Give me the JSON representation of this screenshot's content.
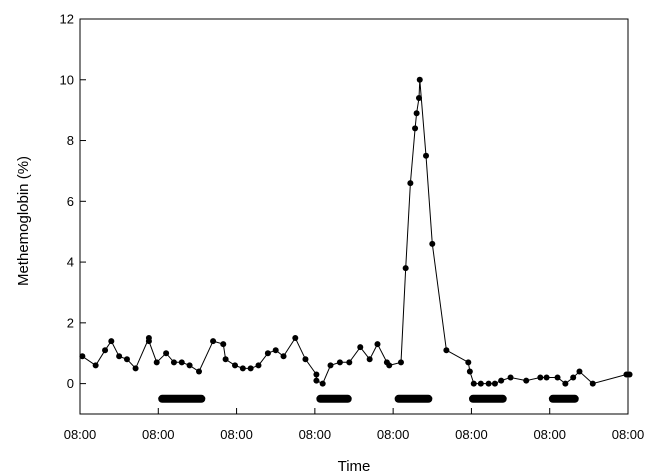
{
  "chart_data": {
    "type": "line",
    "title": "",
    "xlabel": "Time",
    "ylabel": "Methemoglobin (%)",
    "ylim": [
      -1,
      12
    ],
    "yticks": [
      0,
      2,
      4,
      6,
      8,
      10,
      12
    ],
    "xlim": [
      0,
      7
    ],
    "xticks": [
      0,
      1,
      2,
      3,
      4,
      5,
      6,
      7
    ],
    "xtick_labels": [
      "08:00",
      "08:00",
      "08:00",
      "08:00",
      "08:00",
      "08:00",
      "08:00",
      "08:00"
    ],
    "x_unit": "days",
    "grid": false,
    "series": [
      {
        "values": [
          [
            0.03,
            0.9
          ],
          [
            0.2,
            0.6
          ],
          [
            0.32,
            1.1
          ],
          [
            0.4,
            1.4
          ],
          [
            0.5,
            0.9
          ],
          [
            0.6,
            0.8
          ],
          [
            0.71,
            0.5
          ],
          [
            0.88,
            1.5
          ],
          [
            0.88,
            1.4
          ],
          [
            0.98,
            0.7
          ],
          [
            1.1,
            1.0
          ],
          [
            1.2,
            0.7
          ],
          [
            1.3,
            0.7
          ],
          [
            1.4,
            0.6
          ],
          [
            1.52,
            0.4
          ],
          [
            1.7,
            1.4
          ],
          [
            1.83,
            1.3
          ],
          [
            1.86,
            0.8
          ],
          [
            1.98,
            0.6
          ],
          [
            2.08,
            0.5
          ],
          [
            2.18,
            0.5
          ],
          [
            2.28,
            0.6
          ],
          [
            2.4,
            1.0
          ],
          [
            2.5,
            1.1
          ],
          [
            2.6,
            0.9
          ],
          [
            2.75,
            1.5
          ],
          [
            2.88,
            0.8
          ],
          [
            3.02,
            0.3
          ],
          [
            3.02,
            0.1
          ],
          [
            3.1,
            0.0
          ],
          [
            3.2,
            0.6
          ],
          [
            3.32,
            0.7
          ],
          [
            3.44,
            0.7
          ],
          [
            3.58,
            1.2
          ],
          [
            3.7,
            0.8
          ],
          [
            3.8,
            1.3
          ],
          [
            3.92,
            0.7
          ],
          [
            3.95,
            0.6
          ],
          [
            4.1,
            0.7
          ],
          [
            4.16,
            3.8
          ],
          [
            4.22,
            6.6
          ],
          [
            4.28,
            8.4
          ],
          [
            4.3,
            8.9
          ],
          [
            4.33,
            9.4
          ],
          [
            4.34,
            10.0
          ],
          [
            4.42,
            7.5
          ],
          [
            4.5,
            4.6
          ],
          [
            4.68,
            1.1
          ],
          [
            4.96,
            0.7
          ],
          [
            4.98,
            0.4
          ],
          [
            5.03,
            0.0
          ],
          [
            5.12,
            0.0
          ],
          [
            5.22,
            0.0
          ],
          [
            5.3,
            0.0
          ],
          [
            5.38,
            0.1
          ],
          [
            5.5,
            0.2
          ],
          [
            5.7,
            0.1
          ],
          [
            5.88,
            0.2
          ],
          [
            5.96,
            0.2
          ],
          [
            6.1,
            0.2
          ],
          [
            6.2,
            0.0
          ],
          [
            6.3,
            0.2
          ],
          [
            6.38,
            0.4
          ],
          [
            6.55,
            0.0
          ],
          [
            6.98,
            0.3
          ],
          [
            7.02,
            0.3
          ]
        ]
      }
    ],
    "bars": [
      {
        "start": 1.05,
        "end": 1.55,
        "y": -0.5
      },
      {
        "start": 3.07,
        "end": 3.42,
        "y": -0.5
      },
      {
        "start": 4.07,
        "end": 4.45,
        "y": -0.5
      },
      {
        "start": 5.02,
        "end": 5.4,
        "y": -0.5
      },
      {
        "start": 6.04,
        "end": 6.32,
        "y": -0.5
      }
    ],
    "colors": {
      "line": "#000000",
      "marker": "#000000",
      "bar": "#000000"
    }
  }
}
